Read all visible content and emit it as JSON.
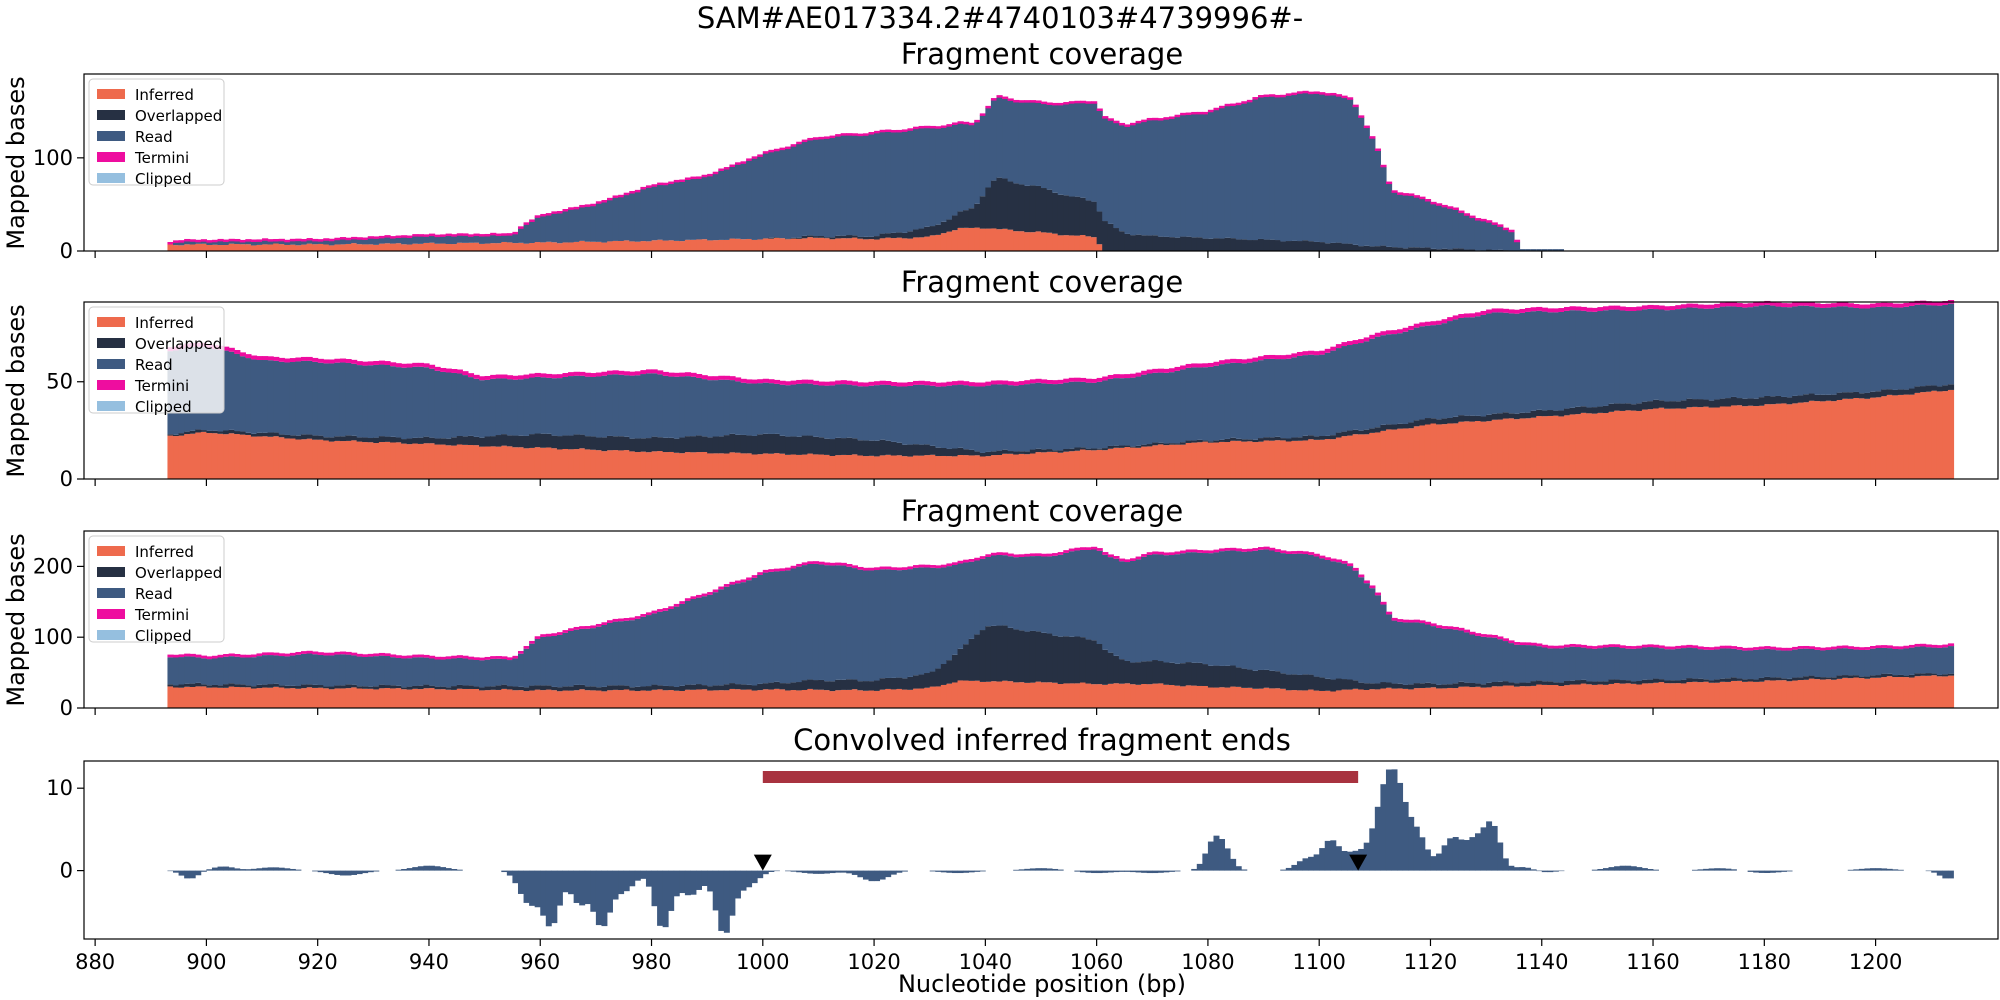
{
  "figure": {
    "suptitle": "SAM#AE017334.2#4740103#4739996#-",
    "x_label": "Nucleotide position (bp)",
    "x_range": [
      878,
      1222
    ],
    "x_ticks": [
      880,
      900,
      920,
      940,
      960,
      980,
      1000,
      1020,
      1040,
      1060,
      1080,
      1100,
      1120,
      1140,
      1160,
      1180,
      1200
    ]
  },
  "colors": {
    "inferred": "#ee6a4d",
    "overlapped": "#263043",
    "read": "#3e5a81",
    "termini": "#ee0d9f",
    "clipped": "#95bfdf",
    "region_bar": "#a8323f",
    "signal": "#3e5a81",
    "marker": "#000000"
  },
  "legend": {
    "placement": "upper-left",
    "entries": [
      {
        "label": "Inferred",
        "color_key": "inferred"
      },
      {
        "label": "Overlapped",
        "color_key": "overlapped"
      },
      {
        "label": "Read",
        "color_key": "read"
      },
      {
        "label": "Termini",
        "color_key": "termini"
      },
      {
        "label": "Clipped",
        "color_key": "clipped"
      }
    ]
  },
  "chart_data": [
    {
      "type": "area",
      "title": "Fragment coverage",
      "ylabel": "Mapped bases",
      "ylim": [
        0,
        190
      ],
      "yticks": [
        0,
        100
      ],
      "x_start": 893,
      "x_end": 1136,
      "inferred": [
        [
          893,
          7
        ],
        [
          900,
          7
        ],
        [
          920,
          7
        ],
        [
          940,
          8
        ],
        [
          960,
          9
        ],
        [
          980,
          11
        ],
        [
          1000,
          13
        ],
        [
          1010,
          14
        ],
        [
          1020,
          13
        ],
        [
          1030,
          15
        ],
        [
          1035,
          24
        ],
        [
          1040,
          25
        ],
        [
          1045,
          22
        ],
        [
          1050,
          20
        ],
        [
          1055,
          17
        ],
        [
          1060,
          15
        ],
        [
          1061,
          0
        ],
        [
          1136,
          0
        ]
      ],
      "overlapped": [
        [
          893,
          0
        ],
        [
          1000,
          0
        ],
        [
          1010,
          2
        ],
        [
          1020,
          3
        ],
        [
          1030,
          10
        ],
        [
          1034,
          14
        ],
        [
          1038,
          22
        ],
        [
          1040,
          40
        ],
        [
          1042,
          55
        ],
        [
          1045,
          52
        ],
        [
          1050,
          48
        ],
        [
          1055,
          42
        ],
        [
          1060,
          38
        ],
        [
          1062,
          30
        ],
        [
          1065,
          19
        ],
        [
          1070,
          16
        ],
        [
          1080,
          14
        ],
        [
          1090,
          12
        ],
        [
          1100,
          10
        ],
        [
          1110,
          5
        ],
        [
          1120,
          3
        ],
        [
          1136,
          0
        ]
      ],
      "read": [
        [
          893,
          0
        ],
        [
          895,
          3
        ],
        [
          920,
          4
        ],
        [
          940,
          8
        ],
        [
          955,
          8
        ],
        [
          957,
          18
        ],
        [
          960,
          28
        ],
        [
          970,
          40
        ],
        [
          980,
          58
        ],
        [
          990,
          68
        ],
        [
          1000,
          90
        ],
        [
          1010,
          105
        ],
        [
          1020,
          110
        ],
        [
          1030,
          107
        ],
        [
          1040,
          85
        ],
        [
          1050,
          90
        ],
        [
          1060,
          107
        ],
        [
          1070,
          124
        ],
        [
          1080,
          135
        ],
        [
          1090,
          153
        ],
        [
          1100,
          160
        ],
        [
          1106,
          155
        ],
        [
          1110,
          110
        ],
        [
          1113,
          60
        ],
        [
          1120,
          50
        ],
        [
          1130,
          30
        ],
        [
          1135,
          20
        ],
        [
          1136,
          0
        ]
      ],
      "termini": [
        [
          893,
          0
        ],
        [
          1136,
          0
        ]
      ],
      "clipped": [
        [
          893,
          0
        ],
        [
          1136,
          0
        ]
      ],
      "tail": [
        [
          1136,
          2
        ],
        [
          1144,
          1
        ]
      ]
    },
    {
      "type": "area",
      "title": "Fragment coverage",
      "ylabel": "Mapped bases",
      "ylim": [
        0,
        91
      ],
      "yticks": [
        0,
        50
      ],
      "x_start": 893,
      "x_end": 1214,
      "inferred": [
        [
          893,
          22
        ],
        [
          900,
          24
        ],
        [
          920,
          20
        ],
        [
          940,
          18
        ],
        [
          960,
          16
        ],
        [
          980,
          14
        ],
        [
          1000,
          13
        ],
        [
          1020,
          12
        ],
        [
          1040,
          12
        ],
        [
          1060,
          15
        ],
        [
          1080,
          19
        ],
        [
          1100,
          20
        ],
        [
          1110,
          24
        ],
        [
          1120,
          28
        ],
        [
          1140,
          32
        ],
        [
          1160,
          36
        ],
        [
          1180,
          38
        ],
        [
          1200,
          42
        ],
        [
          1214,
          46
        ]
      ],
      "overlapped": [
        [
          893,
          1
        ],
        [
          940,
          3
        ],
        [
          960,
          7
        ],
        [
          980,
          7
        ],
        [
          1000,
          10
        ],
        [
          1020,
          8
        ],
        [
          1040,
          2
        ],
        [
          1060,
          1
        ],
        [
          1080,
          1
        ],
        [
          1100,
          2
        ],
        [
          1120,
          3
        ],
        [
          1140,
          3
        ],
        [
          1160,
          4
        ],
        [
          1180,
          4
        ],
        [
          1200,
          3
        ],
        [
          1214,
          3
        ]
      ],
      "read": [
        [
          893,
          43
        ],
        [
          900,
          43
        ],
        [
          910,
          37
        ],
        [
          920,
          38
        ],
        [
          940,
          36
        ],
        [
          950,
          29
        ],
        [
          960,
          29
        ],
        [
          980,
          33
        ],
        [
          1000,
          26
        ],
        [
          1020,
          28
        ],
        [
          1040,
          34
        ],
        [
          1060,
          34
        ],
        [
          1080,
          38
        ],
        [
          1100,
          42
        ],
        [
          1110,
          46
        ],
        [
          1120,
          48
        ],
        [
          1130,
          52
        ],
        [
          1140,
          51
        ],
        [
          1160,
          47
        ],
        [
          1180,
          47
        ],
        [
          1200,
          43
        ],
        [
          1214,
          41
        ]
      ],
      "termini": [
        [
          893,
          1
        ],
        [
          1214,
          1
        ]
      ],
      "clipped": [
        [
          893,
          0
        ],
        [
          1214,
          0
        ]
      ],
      "tail": []
    },
    {
      "type": "area",
      "title": "Fragment coverage",
      "ylabel": "Mapped bases",
      "ylim": [
        0,
        250
      ],
      "yticks": [
        0,
        100,
        200
      ],
      "x_start": 893,
      "x_end": 1214,
      "inferred": [
        [
          893,
          30
        ],
        [
          920,
          28
        ],
        [
          940,
          27
        ],
        [
          960,
          25
        ],
        [
          980,
          25
        ],
        [
          1000,
          26
        ],
        [
          1020,
          25
        ],
        [
          1030,
          28
        ],
        [
          1035,
          38
        ],
        [
          1040,
          38
        ],
        [
          1050,
          36
        ],
        [
          1060,
          34
        ],
        [
          1070,
          34
        ],
        [
          1080,
          30
        ],
        [
          1090,
          28
        ],
        [
          1100,
          24
        ],
        [
          1110,
          27
        ],
        [
          1120,
          28
        ],
        [
          1140,
          32
        ],
        [
          1160,
          35
        ],
        [
          1180,
          38
        ],
        [
          1200,
          43
        ],
        [
          1214,
          46
        ]
      ],
      "overlapped": [
        [
          893,
          4
        ],
        [
          940,
          4
        ],
        [
          960,
          6
        ],
        [
          980,
          6
        ],
        [
          1000,
          8
        ],
        [
          1010,
          14
        ],
        [
          1020,
          14
        ],
        [
          1030,
          20
        ],
        [
          1035,
          40
        ],
        [
          1040,
          78
        ],
        [
          1043,
          78
        ],
        [
          1050,
          70
        ],
        [
          1060,
          62
        ],
        [
          1062,
          45
        ],
        [
          1065,
          32
        ],
        [
          1080,
          32
        ],
        [
          1090,
          25
        ],
        [
          1100,
          20
        ],
        [
          1110,
          8
        ],
        [
          1120,
          6
        ],
        [
          1214,
          3
        ]
      ],
      "read": [
        [
          893,
          39
        ],
        [
          900,
          37
        ],
        [
          920,
          44
        ],
        [
          940,
          39
        ],
        [
          955,
          37
        ],
        [
          957,
          50
        ],
        [
          960,
          68
        ],
        [
          980,
          100
        ],
        [
          1000,
          155
        ],
        [
          1010,
          165
        ],
        [
          1020,
          155
        ],
        [
          1030,
          150
        ],
        [
          1040,
          97
        ],
        [
          1050,
          107
        ],
        [
          1060,
          130
        ],
        [
          1070,
          150
        ],
        [
          1080,
          158
        ],
        [
          1090,
          170
        ],
        [
          1100,
          170
        ],
        [
          1106,
          160
        ],
        [
          1110,
          130
        ],
        [
          1113,
          90
        ],
        [
          1120,
          83
        ],
        [
          1130,
          65
        ],
        [
          1135,
          55
        ],
        [
          1140,
          48
        ],
        [
          1160,
          45
        ],
        [
          1180,
          40
        ],
        [
          1200,
          37
        ],
        [
          1214,
          38
        ]
      ],
      "termini": [
        [
          893,
          1
        ],
        [
          1214,
          1
        ]
      ],
      "clipped": [
        [
          893,
          0
        ],
        [
          1214,
          0
        ]
      ],
      "tail": []
    },
    {
      "type": "bar",
      "title": "Convolved inferred fragment ends",
      "ylabel": "",
      "ylim": [
        -8.3,
        13.3
      ],
      "yticks": [
        0,
        10
      ],
      "x_start": 893,
      "x_end": 1214,
      "peaks": [
        [
          897,
          1.5,
          -1.0
        ],
        [
          903,
          2,
          0.5
        ],
        [
          912,
          3,
          0.4
        ],
        [
          925,
          3,
          -0.6
        ],
        [
          940,
          3,
          0.6
        ],
        [
          958,
          1.8,
          -4.0
        ],
        [
          962,
          1.5,
          -6.5
        ],
        [
          967,
          1.5,
          -4.0
        ],
        [
          971,
          1.5,
          -6.5
        ],
        [
          975,
          2,
          -2.5
        ],
        [
          982,
          1.5,
          -7.0
        ],
        [
          987,
          2,
          -3.0
        ],
        [
          993,
          1.5,
          -7.5
        ],
        [
          997,
          2,
          -2.0
        ],
        [
          1010,
          3,
          -0.4
        ],
        [
          1020,
          2.5,
          -1.3
        ],
        [
          1035,
          3,
          -0.3
        ],
        [
          1050,
          3,
          0.3
        ],
        [
          1060,
          3,
          -0.3
        ],
        [
          1070,
          3,
          -0.3
        ],
        [
          1081,
          1.5,
          3.2
        ],
        [
          1083,
          1.5,
          2.0
        ],
        [
          1098,
          2,
          1.5
        ],
        [
          1102,
          1.5,
          3.3
        ],
        [
          1106,
          2,
          2.0
        ],
        [
          1113,
          2.5,
          12.5
        ],
        [
          1118,
          1.5,
          3.0
        ],
        [
          1124,
          2,
          4.0
        ],
        [
          1128,
          1.5,
          3.0
        ],
        [
          1131,
          1.5,
          5.5
        ],
        [
          1137,
          2,
          0.5
        ],
        [
          1140,
          2,
          -0.3
        ],
        [
          1155,
          3,
          0.6
        ],
        [
          1172,
          3,
          0.3
        ],
        [
          1180,
          3,
          -0.3
        ],
        [
          1200,
          3,
          0.3
        ],
        [
          1213,
          1.5,
          -1.0
        ]
      ],
      "region": [
        1000,
        1107
      ],
      "markers": [
        1000,
        1107
      ]
    }
  ]
}
